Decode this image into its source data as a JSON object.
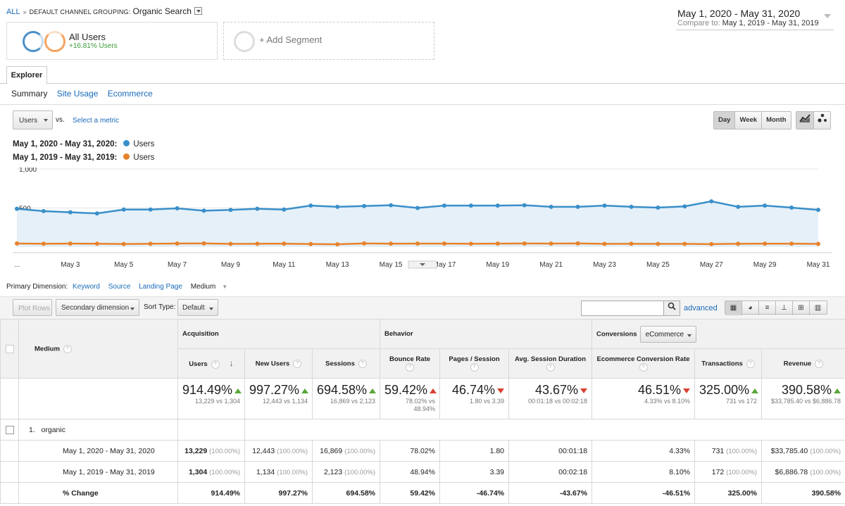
{
  "breadcrumb": {
    "all": "ALL",
    "sep": "»",
    "grouping": "DEFAULT CHANNEL GROUPING:",
    "value": "Organic Search"
  },
  "date_range": {
    "primary": "May 1, 2020 - May 31, 2020",
    "compare_label": "Compare to:",
    "compare": "May 1, 2019 - May 31, 2019"
  },
  "segments": {
    "all_users": "All Users",
    "all_users_change": "+16.81% Users",
    "add": "+ Add Segment"
  },
  "tabs": {
    "explorer": "Explorer",
    "sub": [
      "Summary",
      "Site Usage",
      "Ecommerce"
    ]
  },
  "chart_controls": {
    "metric": "Users",
    "vs": "vs.",
    "select_metric": "Select a metric",
    "day": "Day",
    "week": "Week",
    "month": "Month"
  },
  "legend": [
    {
      "range": "May 1, 2020 - May 31, 2020:",
      "name": "Users",
      "color": "#3a8fc9"
    },
    {
      "range": "May 1, 2019 - May 31, 2019:",
      "name": "Users",
      "color": "#e8822a"
    }
  ],
  "chart_data": {
    "type": "line",
    "x": [
      "May 1",
      "May 2",
      "May 3",
      "May 4",
      "May 5",
      "May 6",
      "May 7",
      "May 8",
      "May 9",
      "May 10",
      "May 11",
      "May 12",
      "May 13",
      "May 14",
      "May 15",
      "May 16",
      "May 17",
      "May 18",
      "May 19",
      "May 20",
      "May 21",
      "May 22",
      "May 23",
      "May 24",
      "May 25",
      "May 26",
      "May 27",
      "May 28",
      "May 29",
      "May 30",
      "May 31"
    ],
    "x_tick_labels": [
      "...",
      "May 3",
      "May 5",
      "May 7",
      "May 9",
      "May 11",
      "May 13",
      "May 15",
      "May 17",
      "May 19",
      "May 21",
      "May 23",
      "May 25",
      "May 27",
      "May 29",
      "May 31"
    ],
    "y_tick_labels": [
      "1,000",
      "500"
    ],
    "ylim": [
      0,
      1000
    ],
    "grid": true,
    "series": [
      {
        "name": "Users",
        "color": "#3a8fc9",
        "values": [
          490,
          460,
          445,
          430,
          480,
          480,
          495,
          465,
          475,
          490,
          480,
          530,
          515,
          525,
          535,
          500,
          530,
          530,
          530,
          535,
          515,
          515,
          530,
          515,
          505,
          520,
          585,
          515,
          530,
          505,
          475
        ]
      },
      {
        "name": "Users",
        "color": "#e8822a",
        "values": [
          45,
          42,
          44,
          43,
          38,
          42,
          45,
          46,
          40,
          42,
          43,
          38,
          35,
          46,
          43,
          44,
          44,
          42,
          44,
          45,
          44,
          46,
          40,
          42,
          40,
          40,
          37,
          42,
          43,
          43,
          40
        ]
      }
    ]
  },
  "primary_dimension": {
    "label": "Primary Dimension:",
    "options": [
      "Keyword",
      "Source",
      "Landing Page"
    ],
    "current": "Medium"
  },
  "table_tools": {
    "plot_rows": "Plot Rows",
    "secondary": "Secondary dimension",
    "sort_type": "Sort Type:",
    "sort_value": "Default",
    "advanced": "advanced",
    "search_placeholder": ""
  },
  "table": {
    "groups": {
      "acquisition": "Acquisition",
      "behavior": "Behavior",
      "conversions": "Conversions",
      "conversions_select": "eCommerce"
    },
    "dim_header": "Medium",
    "columns": [
      "Users",
      "New Users",
      "Sessions",
      "Bounce Rate",
      "Pages / Session",
      "Avg. Session Duration",
      "Ecommerce Conversion Rate",
      "Transactions",
      "Revenue"
    ],
    "totals": [
      {
        "big": "914.49%",
        "sub": "13,229 vs 1,304",
        "dir": "up"
      },
      {
        "big": "997.27%",
        "sub": "12,443 vs 1,134",
        "dir": "up"
      },
      {
        "big": "694.58%",
        "sub": "16,869 vs 2,123",
        "dir": "up"
      },
      {
        "big": "59.42%",
        "sub": "78.02% vs 48.94%",
        "dir": "up-red"
      },
      {
        "big": "46.74%",
        "sub": "1.80 vs 3.39",
        "dir": "down"
      },
      {
        "big": "43.67%",
        "sub": "00:01:18 vs 00:02:18",
        "dir": "down"
      },
      {
        "big": "46.51%",
        "sub": "4.33% vs 8.10%",
        "dir": "down"
      },
      {
        "big": "325.00%",
        "sub": "731 vs 172",
        "dir": "up"
      },
      {
        "big": "390.58%",
        "sub": "$33,785.40 vs $6,886.78",
        "dir": "up"
      }
    ],
    "row_index": "1.",
    "row_name": "organic",
    "rows": [
      {
        "label": "May 1, 2020 - May 31, 2020",
        "cells": [
          [
            "13,229",
            "(100.00%)"
          ],
          [
            "12,443",
            "(100.00%)"
          ],
          [
            "16,869",
            "(100.00%)"
          ],
          [
            "78.02%",
            ""
          ],
          [
            "1.80",
            ""
          ],
          [
            "00:01:18",
            ""
          ],
          [
            "4.33%",
            ""
          ],
          [
            "731",
            "(100.00%)"
          ],
          [
            "$33,785.40",
            "(100.00%)"
          ]
        ]
      },
      {
        "label": "May 1, 2019 - May 31, 2019",
        "cells": [
          [
            "1,304",
            "(100.00%)"
          ],
          [
            "1,134",
            "(100.00%)"
          ],
          [
            "2,123",
            "(100.00%)"
          ],
          [
            "48.94%",
            ""
          ],
          [
            "3.39",
            ""
          ],
          [
            "00:02:18",
            ""
          ],
          [
            "8.10%",
            ""
          ],
          [
            "172",
            "(100.00%)"
          ],
          [
            "$6,886.78",
            "(100.00%)"
          ]
        ]
      },
      {
        "label": "% Change",
        "cells": [
          [
            "914.49%",
            ""
          ],
          [
            "997.27%",
            ""
          ],
          [
            "694.58%",
            ""
          ],
          [
            "59.42%",
            ""
          ],
          [
            "-46.74%",
            ""
          ],
          [
            "-43.67%",
            ""
          ],
          [
            "-46.51%",
            ""
          ],
          [
            "325.00%",
            ""
          ],
          [
            "390.58%",
            ""
          ]
        ]
      }
    ]
  }
}
